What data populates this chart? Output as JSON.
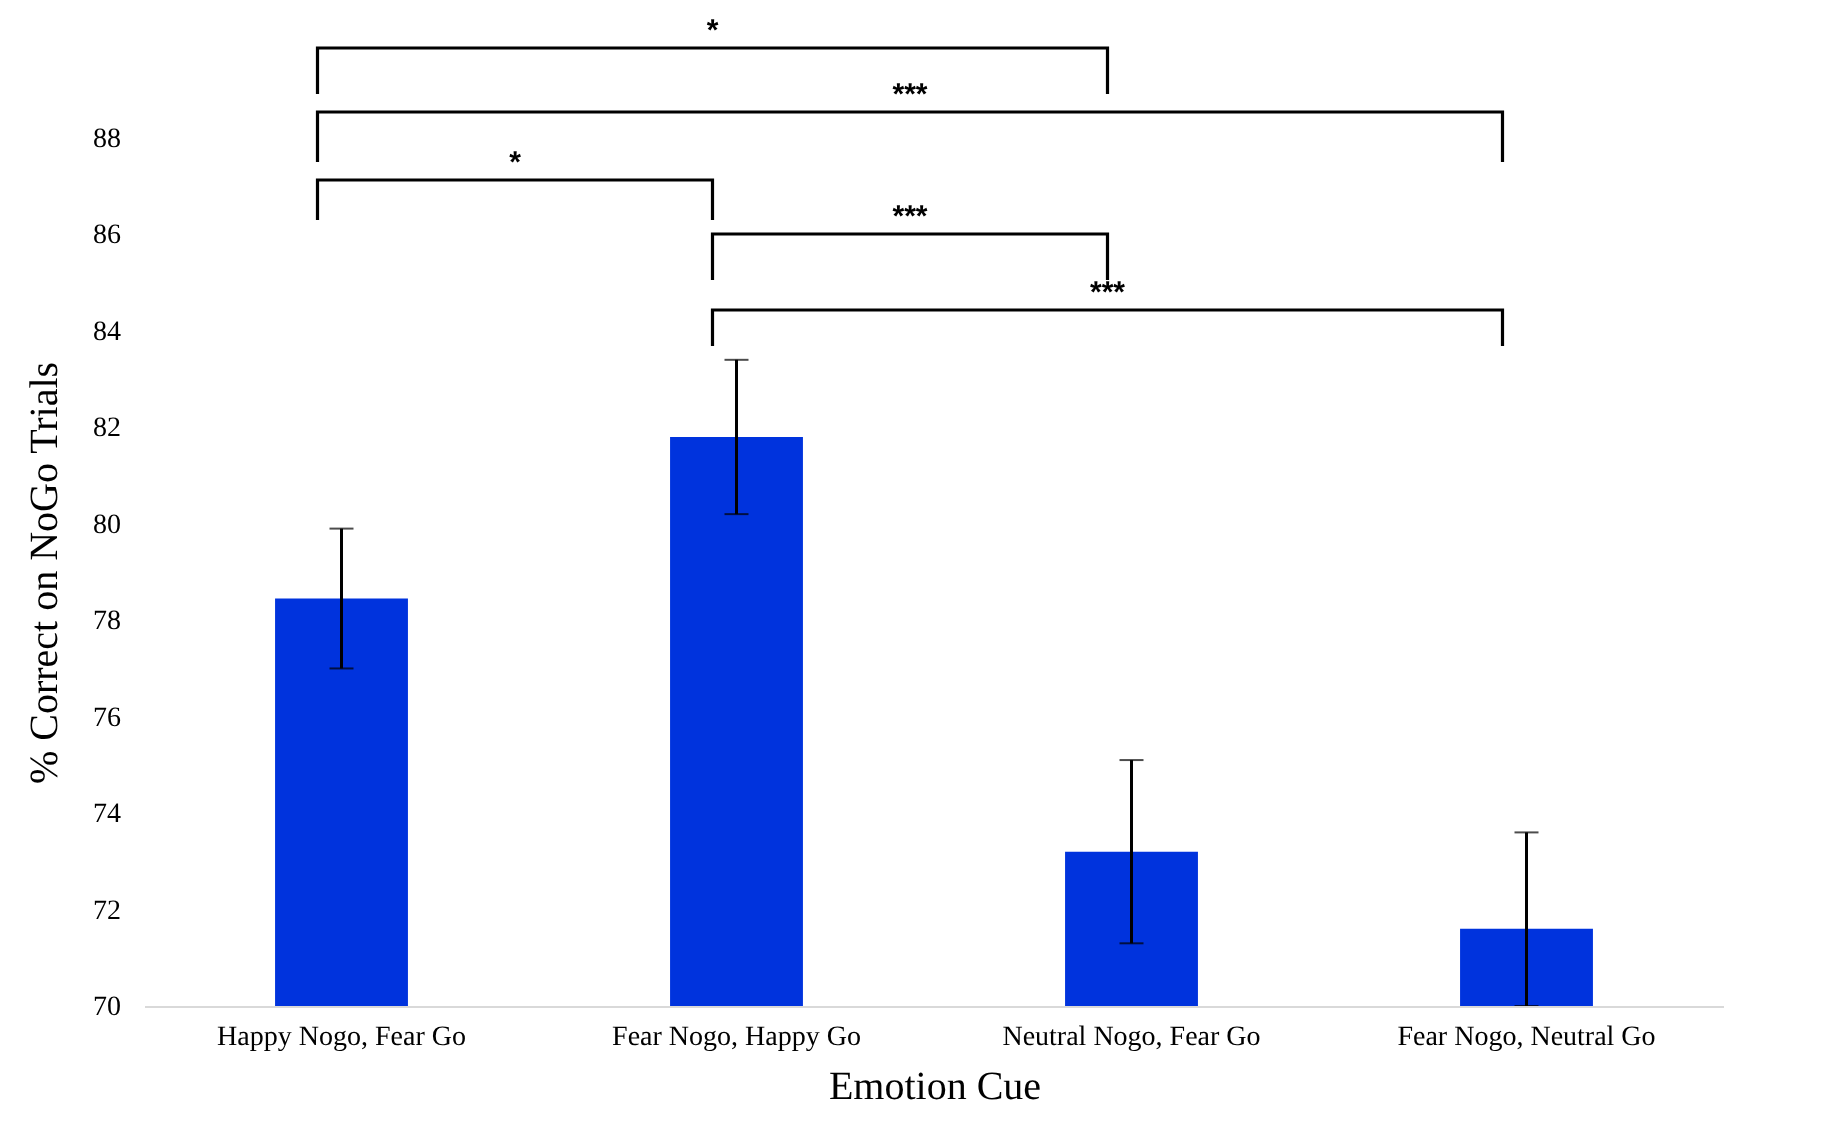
{
  "chart_data": {
    "type": "bar",
    "xlabel": "Emotion Cue",
    "ylabel": "% Correct on NoGo Trials",
    "categories": [
      "Happy Nogo, Fear Go",
      "Fear Nogo, Happy Go",
      "Neutral Nogo, Fear Go",
      "Fear Nogo, Neutral Go"
    ],
    "values": [
      78.45,
      81.8,
      73.2,
      71.6
    ],
    "errors": [
      1.45,
      1.6,
      1.9,
      [
        70,
        73.6
      ]
    ],
    "color": "#0033dd",
    "ylim": [
      70,
      88
    ],
    "yticks": [
      70,
      72,
      74,
      76,
      78,
      80,
      82,
      84,
      86,
      88
    ],
    "grid": false,
    "annotations": [
      "*",
      "***",
      "*",
      "***",
      "***"
    ]
  }
}
